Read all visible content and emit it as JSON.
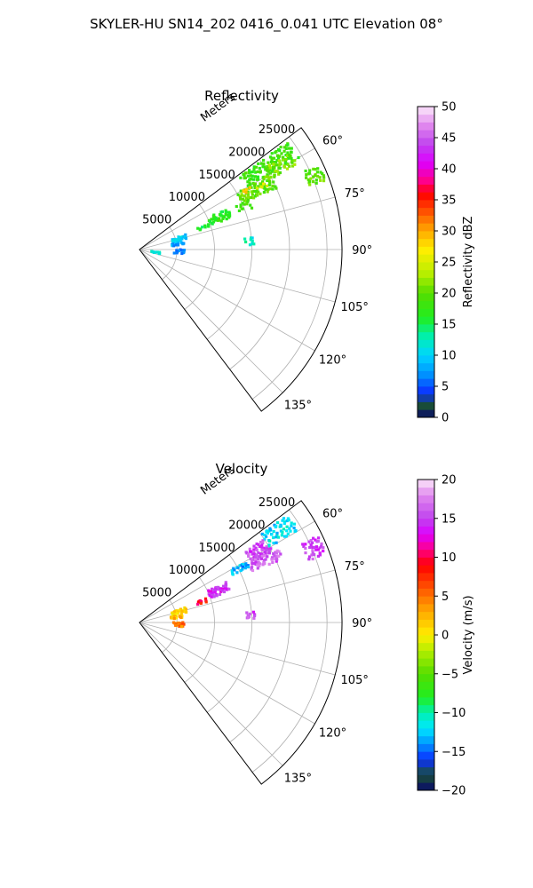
{
  "figure_title": "SKYLER-HU  SN14_202  0416_0.041 UTC Elevation 08°",
  "chart_data": [
    {
      "type": "heatmap",
      "projection": "polar-sector",
      "title": "Reflectivity",
      "range_axis_label": "Meters",
      "range_ticks": [
        5000,
        10000,
        15000,
        20000,
        25000
      ],
      "range_tick_labels": [
        "5000",
        "10000",
        "15000",
        "20000",
        "25000"
      ],
      "azimuth_range_deg": [
        53,
        143
      ],
      "azimuth_ticks_deg": [
        60,
        75,
        90,
        105,
        120,
        135
      ],
      "azimuth_tick_labels": [
        "60°",
        "75°",
        "90°",
        "105°",
        "120°",
        "135°"
      ],
      "grid": true,
      "colorbar": {
        "label": "Reflectivity dBZ",
        "min": 0,
        "max": 50,
        "ticks": [
          0,
          5,
          10,
          15,
          20,
          25,
          30,
          35,
          40,
          45,
          50
        ],
        "tick_labels": [
          "0",
          "5",
          "10",
          "15",
          "20",
          "25",
          "30",
          "35",
          "40",
          "45",
          "50"
        ],
        "stops": [
          [
            0,
            "#08086b"
          ],
          [
            2,
            "#1a5035"
          ],
          [
            4,
            "#0b2fff"
          ],
          [
            7,
            "#0094ff"
          ],
          [
            10,
            "#00d4ff"
          ],
          [
            13,
            "#00f0b0"
          ],
          [
            16,
            "#20ee20"
          ],
          [
            20,
            "#55dd00"
          ],
          [
            23,
            "#b4ee00"
          ],
          [
            27,
            "#ffee00"
          ],
          [
            30,
            "#ffaa00"
          ],
          [
            33,
            "#ff5500"
          ],
          [
            36,
            "#ff0000"
          ],
          [
            38,
            "#ff0088"
          ],
          [
            41,
            "#dd00ff"
          ],
          [
            44,
            "#c044ee"
          ],
          [
            47,
            "#e088ee"
          ],
          [
            50,
            "#fce8fa"
          ]
        ]
      },
      "echo_regions": [
        {
          "az": [
            54,
            60
          ],
          "range": [
            16500,
            24500
          ],
          "value": 18
        },
        {
          "az": [
            57,
            62
          ],
          "range": [
            20000,
            24000
          ],
          "value": 21
        },
        {
          "az": [
            60,
            66
          ],
          "range": [
            15000,
            20000
          ],
          "value": 20
        },
        {
          "az": [
            60,
            62
          ],
          "range": [
            15500,
            17000
          ],
          "value": 28
        },
        {
          "az": [
            62,
            64
          ],
          "range": [
            17500,
            19000
          ],
          "value": 25
        },
        {
          "az": [
            64,
            70
          ],
          "range": [
            24000,
            26500
          ],
          "value": 20
        },
        {
          "az": [
            65,
            71
          ],
          "range": [
            10000,
            13000
          ],
          "value": 17
        },
        {
          "az": [
            66,
            70
          ],
          "range": [
            14000,
            16000
          ],
          "value": 19
        },
        {
          "az": [
            70,
            72
          ],
          "range": [
            8000,
            10000
          ],
          "value": 16
        },
        {
          "az": [
            72,
            78
          ],
          "range": [
            4500,
            6500
          ],
          "value": 10
        },
        {
          "az": [
            80,
            84
          ],
          "range": [
            4000,
            6000
          ],
          "value": 8
        },
        {
          "az": [
            90,
            96
          ],
          "range": [
            4500,
            6000
          ],
          "value": 6
        },
        {
          "az": [
            98,
            102
          ],
          "range": [
            1500,
            3000
          ],
          "value": 11
        },
        {
          "az": [
            84,
            88
          ],
          "range": [
            14000,
            15500
          ],
          "value": 12
        }
      ]
    },
    {
      "type": "heatmap",
      "projection": "polar-sector",
      "title": "Velocity",
      "range_axis_label": "Meters",
      "range_ticks": [
        5000,
        10000,
        15000,
        20000,
        25000
      ],
      "range_tick_labels": [
        "5000",
        "10000",
        "15000",
        "20000",
        "25000"
      ],
      "azimuth_range_deg": [
        53,
        143
      ],
      "azimuth_ticks_deg": [
        60,
        75,
        90,
        105,
        120,
        135
      ],
      "azimuth_tick_labels": [
        "60°",
        "75°",
        "90°",
        "105°",
        "120°",
        "135°"
      ],
      "grid": true,
      "colorbar": {
        "label": "Velocity (m/s)",
        "min": -20,
        "max": 20,
        "ticks": [
          -20,
          -15,
          -10,
          -5,
          0,
          5,
          10,
          15,
          20
        ],
        "tick_labels": [
          "−20",
          "−15",
          "−10",
          "−5",
          "0",
          "5",
          "10",
          "15",
          "20"
        ],
        "stops": [
          [
            -20,
            "#08086b"
          ],
          [
            -18,
            "#1a5035"
          ],
          [
            -16,
            "#0b2fff"
          ],
          [
            -14,
            "#0094ff"
          ],
          [
            -12,
            "#00e8ff"
          ],
          [
            -10,
            "#00f0b0"
          ],
          [
            -8,
            "#20ee20"
          ],
          [
            -5,
            "#55dd00"
          ],
          [
            -2,
            "#b4ee00"
          ],
          [
            0,
            "#ffee00"
          ],
          [
            3,
            "#ffaa00"
          ],
          [
            6,
            "#ff5500"
          ],
          [
            9,
            "#ff0000"
          ],
          [
            11,
            "#ff0088"
          ],
          [
            13,
            "#dd00ff"
          ],
          [
            15,
            "#c044ee"
          ],
          [
            18,
            "#e088ee"
          ],
          [
            20,
            "#fce8fa"
          ]
        ]
      },
      "echo_regions": [
        {
          "az": [
            54,
            60
          ],
          "range": [
            20000,
            24500
          ],
          "value": -12
        },
        {
          "az": [
            56,
            62
          ],
          "range": [
            17000,
            20000
          ],
          "value": 15
        },
        {
          "az": [
            60,
            63
          ],
          "range": [
            14000,
            16500
          ],
          "value": -13
        },
        {
          "az": [
            60,
            66
          ],
          "range": [
            16500,
            21000
          ],
          "value": 16
        },
        {
          "az": [
            64,
            70
          ],
          "range": [
            24000,
            26500
          ],
          "value": 15
        },
        {
          "az": [
            65,
            71
          ],
          "range": [
            10000,
            13000
          ],
          "value": 14
        },
        {
          "az": [
            70,
            73
          ],
          "range": [
            8000,
            9500
          ],
          "value": 9
        },
        {
          "az": [
            72,
            78
          ],
          "range": [
            4500,
            6500
          ],
          "value": 1
        },
        {
          "az": [
            80,
            84
          ],
          "range": [
            4000,
            6000
          ],
          "value": 2
        },
        {
          "az": [
            90,
            96
          ],
          "range": [
            4500,
            6000
          ],
          "value": 5
        },
        {
          "az": [
            84,
            88
          ],
          "range": [
            14000,
            15500
          ],
          "value": 15
        }
      ]
    }
  ]
}
